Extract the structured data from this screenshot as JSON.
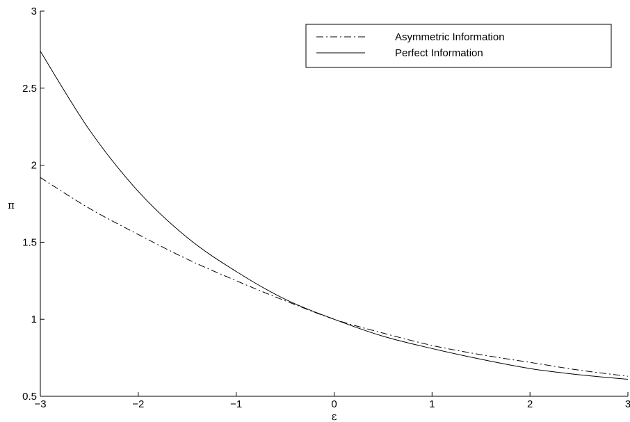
{
  "chart_data": {
    "type": "line",
    "title": "",
    "xlabel": "ε",
    "ylabel": "π",
    "xlim": [
      -3,
      3
    ],
    "ylim": [
      0.5,
      3
    ],
    "xticks": [
      -3,
      -2,
      -1,
      0,
      1,
      2,
      3
    ],
    "xtick_labels": [
      "−3",
      "−2",
      "−1",
      "0",
      "1",
      "2",
      "3"
    ],
    "yticks": [
      0.5,
      1,
      1.5,
      2,
      2.5,
      3
    ],
    "ytick_labels": [
      "0.5",
      "1",
      "1.5",
      "2",
      "2.5",
      "3"
    ],
    "grid": false,
    "legend_position": "top-right",
    "series": [
      {
        "name": "Asymmetric Information",
        "style": "dash-dot",
        "x": [
          -3,
          -2.5,
          -2,
          -1.5,
          -1,
          -0.5,
          0,
          0.5,
          1,
          1.5,
          2,
          2.5,
          3
        ],
        "y": [
          1.92,
          1.72,
          1.55,
          1.39,
          1.25,
          1.12,
          1.0,
          0.91,
          0.83,
          0.77,
          0.72,
          0.67,
          0.63
        ]
      },
      {
        "name": "Perfect Information",
        "style": "solid",
        "x": [
          -3,
          -2.5,
          -2,
          -1.5,
          -1,
          -0.5,
          0,
          0.5,
          1,
          1.5,
          2,
          2.5,
          3
        ],
        "y": [
          2.74,
          2.23,
          1.83,
          1.53,
          1.31,
          1.13,
          1.0,
          0.89,
          0.81,
          0.74,
          0.68,
          0.64,
          0.61
        ]
      }
    ]
  }
}
